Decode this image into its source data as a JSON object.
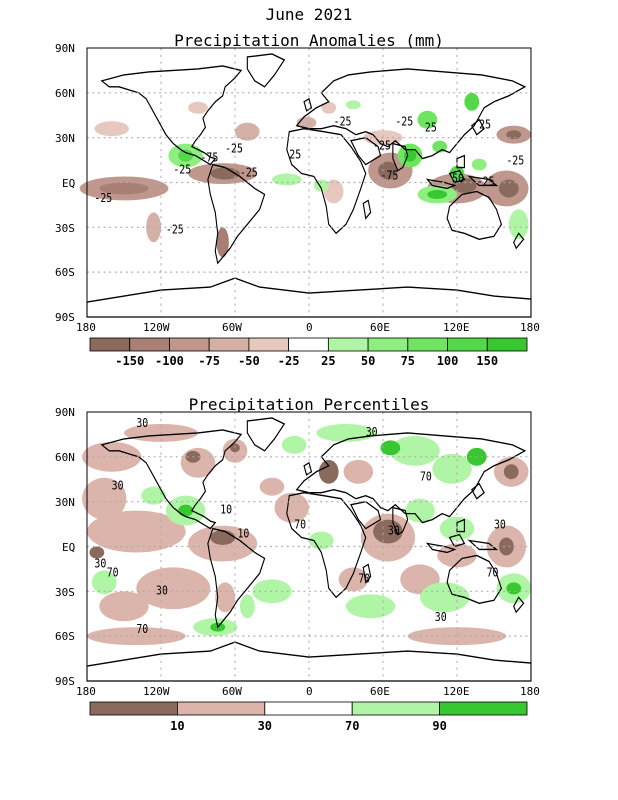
{
  "title": "June 2021",
  "panels": [
    {
      "id": "anomalies",
      "title": "Precipitation Anomalies (mm)",
      "lat_labels": [
        "90N",
        "60N",
        "30N",
        "EQ",
        "30S",
        "60S",
        "90S"
      ],
      "lon_labels": [
        "180",
        "120W",
        "60W",
        "0",
        "60E",
        "120E",
        "180"
      ],
      "colorbar": {
        "colors": [
          "#8b6a5e",
          "#a77f74",
          "#bf978d",
          "#d4b0a6",
          "#e6c8bf",
          "#ffffff",
          "#b0f5a6",
          "#8eee80",
          "#6ee460",
          "#52d848",
          "#36c82e"
        ],
        "labels": [
          "-150",
          "-100",
          "-75",
          "-50",
          "-25",
          "25",
          "50",
          "75",
          "100",
          "150"
        ]
      },
      "contour_labels": [
        "-25",
        "-25",
        "-25",
        "-75",
        "-25",
        "25",
        "-25",
        "-25",
        "25",
        "25",
        "50",
        "-75",
        "-25",
        "-25",
        "-25",
        "-25"
      ]
    },
    {
      "id": "percentiles",
      "title": "Precipitation Percentiles",
      "lat_labels": [
        "90N",
        "60N",
        "30N",
        "EQ",
        "30S",
        "60S",
        "90S"
      ],
      "lon_labels": [
        "180",
        "120W",
        "60W",
        "0",
        "60E",
        "120E",
        "180"
      ],
      "colorbar": {
        "colors": [
          "#8b6a5e",
          "#dbb5ab",
          "#ffffff",
          "#b0f5a6",
          "#36c82e"
        ],
        "labels": [
          "10",
          "30",
          "70",
          "90"
        ]
      },
      "contour_labels": [
        "30",
        "30",
        "30",
        "70",
        "10",
        "30",
        "70",
        "10",
        "70",
        "30",
        "30",
        "70",
        "70",
        "30",
        "30",
        "70"
      ]
    }
  ]
}
